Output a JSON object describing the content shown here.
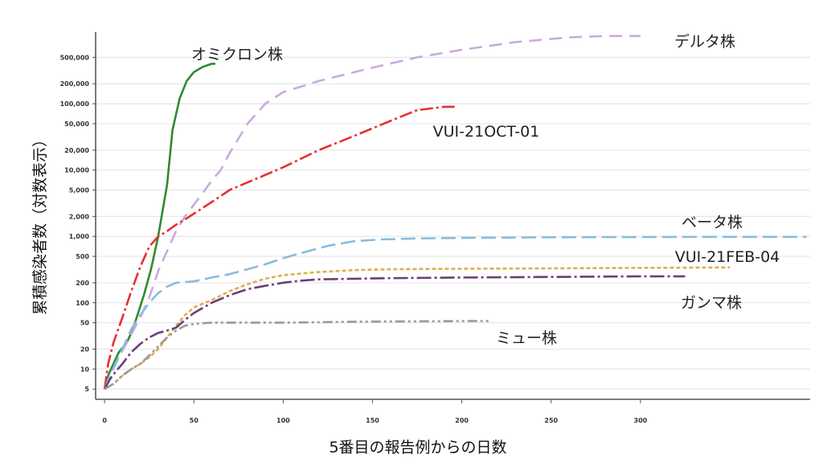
{
  "chart_data": {
    "type": "line",
    "title": "",
    "xlabel": "5番目の報告例からの日数",
    "ylabel": "累積感染者数（対数表示）",
    "y_scale": "log",
    "xlim": [
      -5,
      395
    ],
    "ylim": [
      3.5,
      1200000
    ],
    "x_ticks": [
      0,
      50,
      100,
      150,
      200,
      250,
      300
    ],
    "x_tick_labels": [
      "0",
      "50",
      "100",
      "150",
      "200",
      "250",
      "300"
    ],
    "y_ticks": [
      5,
      10,
      20,
      50,
      100,
      200,
      500,
      1000,
      2000,
      5000,
      10000,
      20000,
      50000,
      100000,
      200000,
      500000
    ],
    "y_tick_labels": [
      "5",
      "10",
      "20",
      "50",
      "100",
      "200",
      "500",
      "1,000",
      "2,000",
      "5,000",
      "10,000",
      "20,000",
      "50,000",
      "100,000",
      "200,000",
      "500,000"
    ],
    "grid": true,
    "legend": "labels placed next to each line",
    "series": [
      {
        "name": "オミクロン株",
        "color": "#2e8b2e",
        "dash": "solid",
        "x": [
          0,
          2,
          5,
          8,
          12,
          15,
          18,
          22,
          26,
          30,
          35,
          38,
          42,
          46,
          50,
          55,
          60,
          62
        ],
        "y": [
          5,
          8,
          12,
          18,
          24,
          35,
          60,
          130,
          320,
          1000,
          6000,
          40000,
          120000,
          220000,
          300000,
          360000,
          400000,
          400000
        ]
      },
      {
        "name": "デルタ株",
        "color": "#c9aadf",
        "dash": "16 9",
        "x": [
          0,
          3,
          8,
          14,
          20,
          25,
          30,
          35,
          40,
          45,
          50,
          55,
          60,
          65,
          70,
          80,
          90,
          100,
          120,
          150,
          175,
          200,
          230,
          260,
          280,
          300
        ],
        "y": [
          5,
          8,
          15,
          30,
          60,
          120,
          300,
          600,
          1200,
          2000,
          3000,
          4500,
          7000,
          10000,
          18000,
          50000,
          100000,
          150000,
          220000,
          350000,
          500000,
          650000,
          850000,
          1000000,
          1050000,
          1050000
        ]
      },
      {
        "name": "VUI-21OCT-01",
        "color": "#e53030",
        "dash": "16 4 3 4",
        "x": [
          0,
          2,
          5,
          10,
          15,
          20,
          25,
          30,
          35,
          40,
          45,
          50,
          60,
          70,
          80,
          100,
          120,
          140,
          160,
          175,
          190,
          197
        ],
        "y": [
          5,
          12,
          25,
          60,
          150,
          350,
          700,
          1000,
          1200,
          1500,
          1800,
          2200,
          3300,
          5000,
          6500,
          11000,
          20000,
          33000,
          55000,
          80000,
          90000,
          90000
        ]
      },
      {
        "name": "ベータ株",
        "color": "#86bce0",
        "dash": "18 7",
        "x": [
          0,
          3,
          6,
          10,
          15,
          20,
          25,
          30,
          35,
          40,
          45,
          50,
          60,
          70,
          80,
          90,
          100,
          110,
          125,
          140,
          155,
          175,
          200,
          250,
          300,
          350,
          393
        ],
        "y": [
          5,
          8,
          12,
          20,
          40,
          65,
          100,
          140,
          175,
          200,
          205,
          210,
          240,
          270,
          320,
          380,
          470,
          560,
          720,
          850,
          900,
          930,
          950,
          970,
          980,
          985,
          985
        ]
      },
      {
        "name": "VUI-21FEB-04",
        "color": "#e0ae4e",
        "dash": "5 3",
        "x": [
          0,
          5,
          10,
          15,
          20,
          25,
          30,
          35,
          40,
          45,
          50,
          60,
          70,
          80,
          90,
          100,
          110,
          120,
          140,
          160,
          200,
          250,
          300,
          350
        ],
        "y": [
          5,
          6,
          8,
          10,
          12,
          15,
          20,
          30,
          45,
          65,
          85,
          110,
          150,
          190,
          230,
          260,
          275,
          290,
          310,
          320,
          325,
          330,
          335,
          340
        ]
      },
      {
        "name": "ガンマ株",
        "color": "#6a3f75",
        "dash": "18 4 3 4",
        "x": [
          0,
          3,
          6,
          10,
          15,
          20,
          25,
          30,
          35,
          40,
          45,
          50,
          60,
          70,
          80,
          90,
          100,
          110,
          120,
          140,
          160,
          200,
          250,
          300,
          325
        ],
        "y": [
          5,
          7,
          9,
          12,
          18,
          24,
          30,
          35,
          38,
          42,
          55,
          70,
          100,
          130,
          160,
          180,
          200,
          215,
          225,
          230,
          235,
          240,
          245,
          250,
          250
        ]
      },
      {
        "name": "ミュー株",
        "color": "#999999",
        "dash": "12 4 3 4 3 4",
        "x": [
          0,
          5,
          10,
          15,
          20,
          25,
          30,
          35,
          40,
          45,
          50,
          60,
          80,
          100,
          150,
          200,
          215
        ],
        "y": [
          5,
          6,
          8,
          10,
          12,
          16,
          22,
          30,
          38,
          45,
          48,
          50,
          50,
          50,
          52,
          53,
          53
        ]
      }
    ]
  }
}
